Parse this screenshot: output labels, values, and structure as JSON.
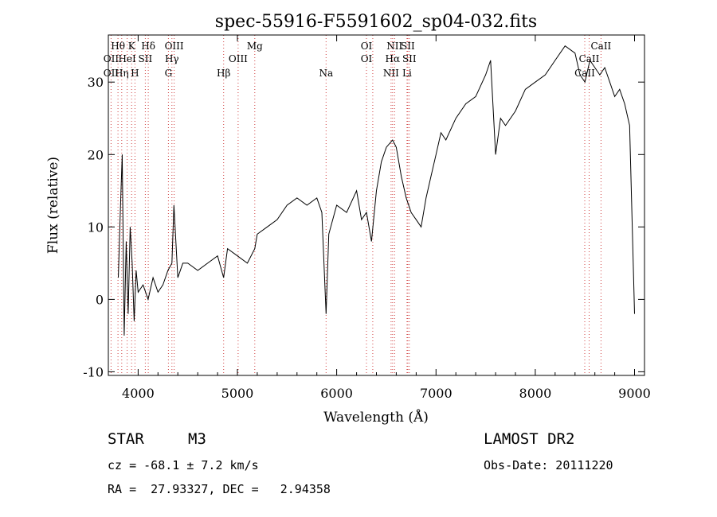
{
  "chart_data": {
    "type": "line",
    "title": "spec-55916-F5591602_sp04-032.fits",
    "xlabel": "Wavelength (Å)",
    "ylabel": "Flux (relative)",
    "xlim": [
      3700,
      9100
    ],
    "ylim": [
      -10.5,
      36.5
    ],
    "x_ticks": [
      4000,
      5000,
      6000,
      7000,
      8000,
      9000
    ],
    "y_ticks": [
      -10,
      0,
      10,
      20,
      30
    ],
    "grid": false,
    "legend": "none",
    "series": [
      {
        "color": "#000000",
        "x": [
          3800,
          3820,
          3840,
          3860,
          3880,
          3900,
          3920,
          3940,
          3960,
          3980,
          4000,
          4050,
          4100,
          4150,
          4200,
          4250,
          4300,
          4340,
          4360,
          4400,
          4450,
          4500,
          4600,
          4700,
          4800,
          4861,
          4900,
          5000,
          5100,
          5175,
          5200,
          5300,
          5400,
          5500,
          5600,
          5700,
          5800,
          5850,
          5893,
          5920,
          6000,
          6100,
          6200,
          6250,
          6300,
          6350,
          6400,
          6450,
          6500,
          6563,
          6600,
          6650,
          6700,
          6750,
          6800,
          6850,
          6900,
          6950,
          7000,
          7050,
          7100,
          7200,
          7300,
          7400,
          7500,
          7550,
          7600,
          7650,
          7700,
          7800,
          7900,
          8000,
          8100,
          8200,
          8300,
          8400,
          8450,
          8500,
          8550,
          8600,
          8650,
          8700,
          8750,
          8800,
          8850,
          8900,
          8950,
          9000
        ],
        "y": [
          3,
          12,
          20,
          -5,
          8,
          -2,
          10,
          5,
          -3,
          4,
          1,
          2,
          0,
          3,
          1,
          2,
          4,
          5,
          13,
          3,
          5,
          5,
          4,
          5,
          6,
          3,
          7,
          6,
          5,
          7,
          9,
          10,
          11,
          13,
          14,
          13,
          14,
          12,
          -2,
          9,
          13,
          12,
          15,
          11,
          12,
          8,
          15,
          19,
          21,
          22,
          21,
          17,
          14,
          12,
          11,
          10,
          14,
          17,
          20,
          23,
          22,
          25,
          27,
          28,
          31,
          33,
          20,
          25,
          24,
          26,
          29,
          30,
          31,
          33,
          35,
          34,
          31,
          30,
          33,
          32,
          31,
          32,
          30,
          28,
          29,
          27,
          24,
          -2
        ]
      }
    ],
    "line_labels": [
      {
        "label": "Hθ",
        "wavelength": 3797,
        "row": 1
      },
      {
        "label": "K",
        "wavelength": 3934,
        "row": 1
      },
      {
        "label": "Hδ",
        "wavelength": 4102,
        "row": 1
      },
      {
        "label": "OII",
        "wavelength": 3727,
        "row": 2
      },
      {
        "label": "HeI",
        "wavelength": 3889,
        "row": 2
      },
      {
        "label": "SII",
        "wavelength": 4072,
        "row": 2
      },
      {
        "label": "OII",
        "wavelength": 3727,
        "row": 3
      },
      {
        "label": "Hη",
        "wavelength": 3835,
        "row": 3
      },
      {
        "label": "H",
        "wavelength": 3968,
        "row": 3
      },
      {
        "label": "OIII",
        "wavelength": 4363,
        "row": 1
      },
      {
        "label": "Hγ",
        "wavelength": 4340,
        "row": 2
      },
      {
        "label": "G",
        "wavelength": 4305,
        "row": 3
      },
      {
        "label": "Mg",
        "wavelength": 5175,
        "row": 1
      },
      {
        "label": "OIII",
        "wavelength": 5007,
        "row": 2
      },
      {
        "label": "Hβ",
        "wavelength": 4861,
        "row": 3
      },
      {
        "label": "Na",
        "wavelength": 5893,
        "row": 3
      },
      {
        "label": "OI",
        "wavelength": 6300,
        "row": 1
      },
      {
        "label": "OI",
        "wavelength": 6300,
        "row": 2
      },
      {
        "label": "NII",
        "wavelength": 6583,
        "row": 1
      },
      {
        "label": "SII",
        "wavelength": 6716,
        "row": 1
      },
      {
        "label": "Hα",
        "wavelength": 6563,
        "row": 2
      },
      {
        "label": "SII",
        "wavelength": 6731,
        "row": 2
      },
      {
        "label": "NII",
        "wavelength": 6548,
        "row": 3
      },
      {
        "label": "Li",
        "wavelength": 6708,
        "row": 3
      },
      {
        "label": "CaII",
        "wavelength": 8662,
        "row": 1
      },
      {
        "label": "CaII",
        "wavelength": 8542,
        "row": 2
      },
      {
        "label": "CaII",
        "wavelength": 8498,
        "row": 3
      }
    ],
    "marker_lines": [
      3727,
      3797,
      3835,
      3889,
      3934,
      3968,
      4072,
      4102,
      4305,
      4340,
      4363,
      4861,
      5007,
      5175,
      5893,
      6300,
      6363,
      6548,
      6563,
      6583,
      6708,
      6716,
      6731,
      8498,
      8542,
      8662
    ]
  },
  "info": {
    "object_class": "STAR",
    "subclass": "M3",
    "survey": "LAMOST DR2",
    "cz_text": "cz = -68.1 ± 7.2 km/s",
    "obs_date_text": "Obs-Date: 20111220",
    "coord_text": "RA =  27.93327, DEC =   2.94358"
  }
}
